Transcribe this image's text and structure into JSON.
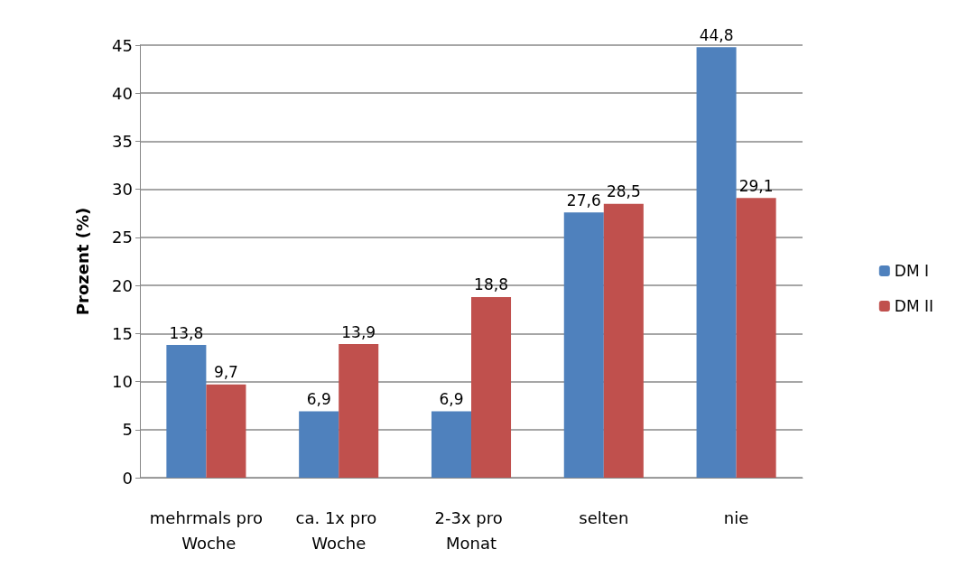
{
  "chart_data": {
    "type": "bar",
    "ylabel": "Prozent (%)",
    "categories": [
      "mehrmals pro Woche",
      "ca. 1x pro Woche",
      "2-3x pro Monat",
      "selten",
      "nie"
    ],
    "series": [
      {
        "name": "DM I",
        "color": "#4f81bd",
        "values": [
          13.8,
          6.9,
          6.9,
          27.6,
          44.8
        ],
        "value_labels": [
          "13,8",
          "6,9",
          "6,9",
          "27,6",
          "44,8"
        ]
      },
      {
        "name": "DM II",
        "color": "#c0504d",
        "values": [
          9.7,
          13.9,
          18.8,
          28.5,
          29.1
        ],
        "value_labels": [
          "9,7",
          "13,9",
          "18,8",
          "28,5",
          "29,1"
        ]
      }
    ],
    "ylim": [
      0,
      45
    ],
    "yticks": [
      0,
      5,
      10,
      15,
      20,
      25,
      30,
      35,
      40,
      45
    ],
    "grid": "y",
    "legend": "right"
  }
}
